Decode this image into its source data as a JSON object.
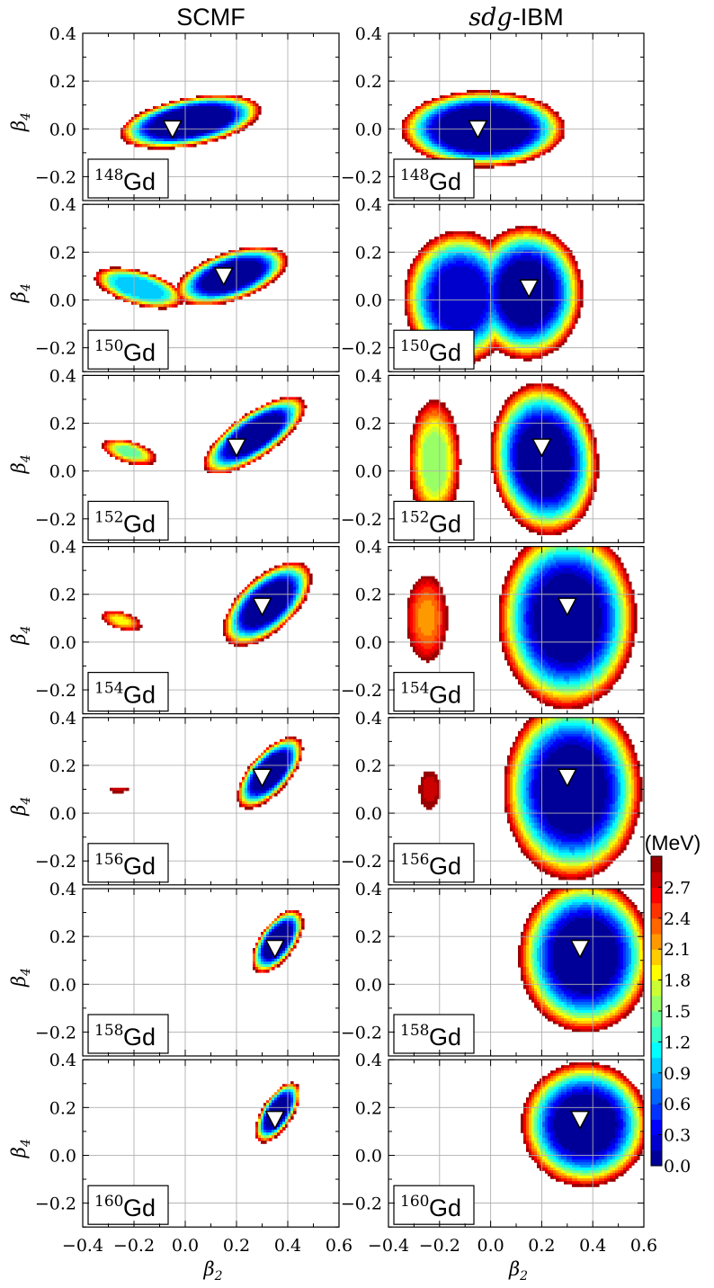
{
  "chart_data": {
    "type": "contour",
    "columns": [
      {
        "title": "SCMF",
        "title_italic": "",
        "title_rest": ""
      },
      {
        "title": "",
        "title_italic": "sdg",
        "title_rest": "-IBM"
      }
    ],
    "xlabel": "β2",
    "ylabel": "β4",
    "xlim": [
      -0.4,
      0.6
    ],
    "ylim": [
      -0.3,
      0.4
    ],
    "xticks": [
      -0.4,
      -0.2,
      0.0,
      0.2,
      0.4,
      0.6
    ],
    "xtick_labels": [
      "−0.4",
      "−0.2",
      "0.0",
      "0.2",
      "0.4",
      "0.6"
    ],
    "yticks": [
      -0.2,
      0.0,
      0.2,
      0.4
    ],
    "ytick_labels": [
      "−0.2",
      "0.0",
      "0.2",
      "0.4"
    ],
    "grid": true,
    "colorbar": {
      "title": "(MeV)",
      "min": 0.0,
      "max": 3.0,
      "ticks": [
        0.0,
        0.3,
        0.6,
        0.9,
        1.2,
        1.5,
        1.8,
        2.1,
        2.4,
        2.7
      ],
      "tick_labels": [
        "0.0",
        "0.3",
        "0.6",
        "0.9",
        "1.2",
        "1.5",
        "1.8",
        "2.1",
        "2.4",
        "2.7"
      ],
      "colormap": "jet"
    },
    "rows": [
      {
        "nucleus_mass": "148",
        "nucleus_symbol": "Gd",
        "scmf": {
          "minimum": [
            -0.05,
            0.0
          ],
          "lobes": [
            {
              "cx": 0.02,
              "cy": 0.03,
              "rx": 0.28,
              "ry": 0.1,
              "rot": 0.2,
              "core": 0.5
            }
          ]
        },
        "ibm": {
          "minimum": [
            -0.05,
            0.0
          ],
          "lobes": [
            {
              "cx": -0.03,
              "cy": 0.0,
              "rx": 0.32,
              "ry": 0.16,
              "rot": 0.0,
              "core": 0.5
            }
          ]
        }
      },
      {
        "nucleus_mass": "150",
        "nucleus_symbol": "Gd",
        "scmf": {
          "minimum": [
            0.15,
            0.1
          ],
          "lobes": [
            {
              "cx": -0.18,
              "cy": 0.05,
              "rx": 0.18,
              "ry": 0.07,
              "rot": -0.3,
              "core": 0.5,
              "base": 1.0
            },
            {
              "cx": 0.18,
              "cy": 0.1,
              "rx": 0.23,
              "ry": 0.1,
              "rot": 0.35,
              "core": 0.45,
              "base": 0.0
            }
          ]
        },
        "ibm": {
          "minimum": [
            0.15,
            0.05
          ],
          "lobes": [
            {
              "cx": -0.12,
              "cy": 0.01,
              "rx": 0.22,
              "ry": 0.28,
              "rot": 0.0,
              "core": 0.4,
              "base": 0.2
            },
            {
              "cx": 0.14,
              "cy": 0.03,
              "rx": 0.22,
              "ry": 0.28,
              "rot": 0.0,
              "core": 0.4,
              "base": 0.0
            }
          ]
        }
      },
      {
        "nucleus_mass": "152",
        "nucleus_symbol": "Gd",
        "scmf": {
          "minimum": [
            0.2,
            0.1
          ],
          "lobes": [
            {
              "cx": -0.22,
              "cy": 0.08,
              "rx": 0.11,
              "ry": 0.045,
              "rot": -0.3,
              "core": 0.3,
              "base": 1.4
            },
            {
              "cx": 0.27,
              "cy": 0.15,
              "rx": 0.24,
              "ry": 0.09,
              "rot": 0.65,
              "core": 0.45,
              "base": 0.0
            }
          ]
        },
        "ibm": {
          "minimum": [
            0.2,
            0.1
          ],
          "lobes": [
            {
              "cx": -0.22,
              "cy": 0.04,
              "rx": 0.1,
              "ry": 0.26,
              "rot": 0.0,
              "core": 0.3,
              "base": 1.5
            },
            {
              "cx": 0.21,
              "cy": 0.05,
              "rx": 0.21,
              "ry": 0.32,
              "rot": 0.1,
              "core": 0.4,
              "base": 0.0
            }
          ]
        }
      },
      {
        "nucleus_mass": "154",
        "nucleus_symbol": "Gd",
        "scmf": {
          "minimum": [
            0.3,
            0.15
          ],
          "lobes": [
            {
              "cx": -0.25,
              "cy": 0.09,
              "rx": 0.08,
              "ry": 0.035,
              "rot": -0.3,
              "core": 0.3,
              "base": 1.9
            },
            {
              "cx": 0.32,
              "cy": 0.16,
              "rx": 0.22,
              "ry": 0.11,
              "rot": 0.8,
              "core": 0.45,
              "base": 0.0
            }
          ]
        },
        "ibm": {
          "minimum": [
            0.3,
            0.15
          ],
          "lobes": [
            {
              "cx": -0.25,
              "cy": 0.1,
              "rx": 0.08,
              "ry": 0.18,
              "rot": 0.0,
              "core": 0.3,
              "base": 2.2
            },
            {
              "cx": 0.3,
              "cy": 0.1,
              "rx": 0.27,
              "ry": 0.38,
              "rot": 0.0,
              "core": 0.4,
              "base": 0.0
            }
          ]
        }
      },
      {
        "nucleus_mass": "156",
        "nucleus_symbol": "Gd",
        "scmf": {
          "minimum": [
            0.3,
            0.15
          ],
          "lobes": [
            {
              "cx": -0.26,
              "cy": 0.1,
              "rx": 0.04,
              "ry": 0.012,
              "rot": 0.0,
              "core": 0.3,
              "base": 2.8
            },
            {
              "cx": 0.33,
              "cy": 0.17,
              "rx": 0.18,
              "ry": 0.08,
              "rot": 0.9,
              "core": 0.45,
              "base": 0.0
            }
          ]
        },
        "ibm": {
          "minimum": [
            0.3,
            0.15
          ],
          "lobes": [
            {
              "cx": -0.24,
              "cy": 0.1,
              "rx": 0.04,
              "ry": 0.08,
              "rot": 0.0,
              "core": 0.3,
              "base": 2.75
            },
            {
              "cx": 0.32,
              "cy": 0.1,
              "rx": 0.27,
              "ry": 0.38,
              "rot": 0.0,
              "core": 0.4,
              "base": 0.0
            }
          ]
        }
      },
      {
        "nucleus_mass": "158",
        "nucleus_symbol": "Gd",
        "scmf": {
          "minimum": [
            0.35,
            0.15
          ],
          "lobes": [
            {
              "cx": 0.36,
              "cy": 0.18,
              "rx": 0.15,
              "ry": 0.07,
              "rot": 1.0,
              "core": 0.45,
              "base": 0.0
            }
          ]
        },
        "ibm": {
          "minimum": [
            0.35,
            0.15
          ],
          "lobes": [
            {
              "cx": 0.37,
              "cy": 0.12,
              "rx": 0.26,
              "ry": 0.32,
              "rot": 0.0,
              "core": 0.4,
              "base": 0.0
            }
          ]
        }
      },
      {
        "nucleus_mass": "160",
        "nucleus_symbol": "Gd",
        "scmf": {
          "minimum": [
            0.35,
            0.15
          ],
          "lobes": [
            {
              "cx": 0.36,
              "cy": 0.18,
              "rx": 0.14,
              "ry": 0.06,
              "rot": 1.05,
              "core": 0.45,
              "base": 0.0
            }
          ]
        },
        "ibm": {
          "minimum": [
            0.35,
            0.15
          ],
          "lobes": [
            {
              "cx": 0.37,
              "cy": 0.13,
              "rx": 0.25,
              "ry": 0.26,
              "rot": 0.0,
              "core": 0.4,
              "base": 0.0
            }
          ]
        }
      }
    ]
  }
}
